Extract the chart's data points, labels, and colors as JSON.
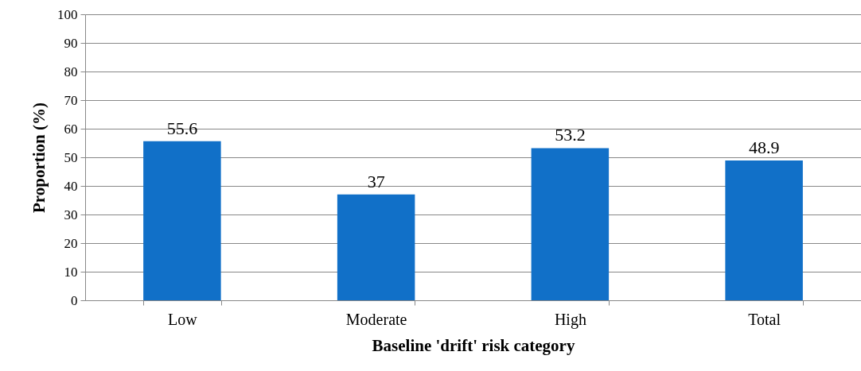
{
  "chart_data": {
    "type": "bar",
    "xlabel": "Baseline 'drift' risk category",
    "ylabel": "Proportion (%)",
    "categories": [
      "Low",
      "Moderate",
      "High",
      "Total"
    ],
    "values": [
      55.6,
      37,
      53.2,
      48.9
    ],
    "color": "#1170c8",
    "ylim": [
      0,
      100
    ],
    "yticks": [
      0,
      10,
      20,
      30,
      40,
      50,
      60,
      70,
      80,
      90,
      100
    ],
    "grid": "y",
    "data_labels": true
  }
}
